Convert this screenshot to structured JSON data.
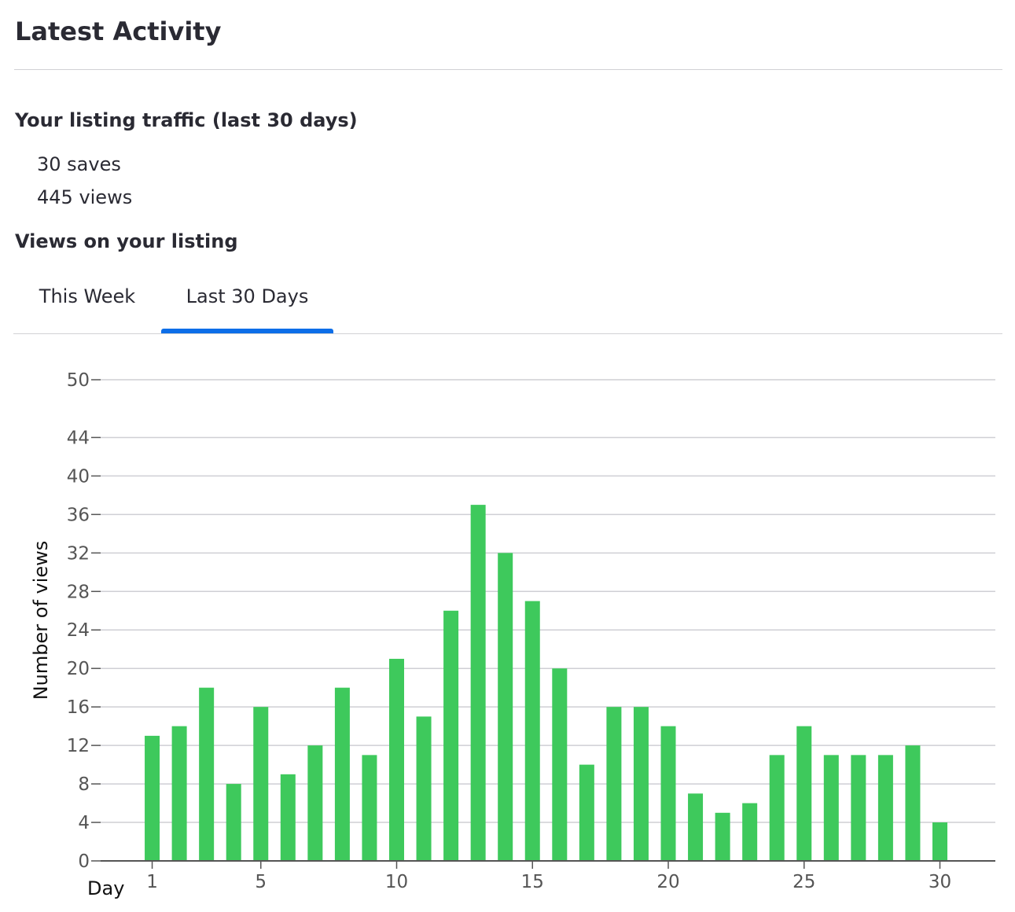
{
  "header": {
    "title": "Latest Activity"
  },
  "traffic": {
    "title": "Your listing traffic (last 30 days)",
    "saves": "30 saves",
    "views": "445 views"
  },
  "views_section": {
    "title": "Views on your listing",
    "tabs": [
      {
        "label": "This Week",
        "active": false
      },
      {
        "label": "Last 30 Days",
        "active": true
      }
    ]
  },
  "colors": {
    "bar": "#3ec95c",
    "active_tab": "#0d6ee8",
    "grid": "#cfcfd4",
    "axis": "#555555",
    "tick_text": "#555555"
  },
  "chart_data": {
    "type": "bar",
    "x": [
      1,
      2,
      3,
      4,
      5,
      6,
      7,
      8,
      9,
      10,
      11,
      12,
      13,
      14,
      15,
      16,
      17,
      18,
      19,
      20,
      21,
      22,
      23,
      24,
      25,
      26,
      27,
      28,
      29,
      30
    ],
    "values": [
      13,
      14,
      18,
      8,
      16,
      9,
      12,
      18,
      11,
      21,
      15,
      26,
      37,
      32,
      27,
      20,
      10,
      16,
      16,
      14,
      7,
      5,
      6,
      11,
      14,
      11,
      11,
      11,
      12,
      4
    ],
    "xlabel": "Day",
    "ylabel": "Number of views",
    "x_ticks": [
      1,
      5,
      10,
      15,
      20,
      25,
      30
    ],
    "y_ticks": [
      0,
      4,
      8,
      12,
      16,
      20,
      24,
      28,
      32,
      36,
      40,
      44,
      50
    ],
    "ylim": [
      0,
      50
    ],
    "xlim": [
      0,
      31
    ],
    "grid": true,
    "legend": "none"
  }
}
